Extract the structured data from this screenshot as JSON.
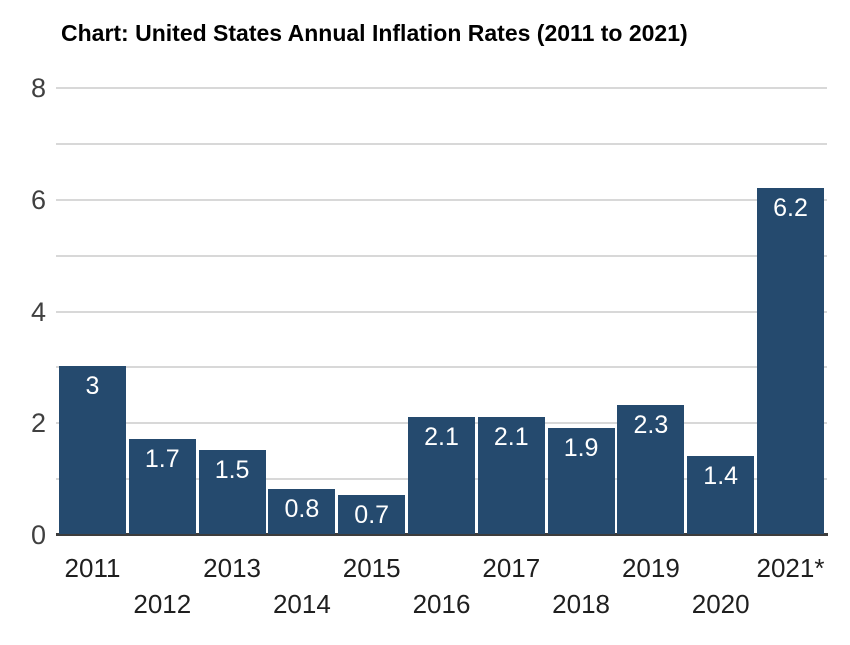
{
  "title": "Chart: United States Annual Inflation Rates (2011 to 2021)",
  "colors": {
    "background": "#ffffff",
    "bar": "#254a6e",
    "bar_label": "#ffffff",
    "grid": "#d8d8d8",
    "axis": "#3d3d3d",
    "y_tick_label": "#404040",
    "x_tick_label": "#1f1f1f",
    "title": "#000000"
  },
  "chart_data": {
    "type": "bar",
    "title": "Chart: United States Annual Inflation Rates (2011 to 2021)",
    "categories": [
      "2011",
      "2012",
      "2013",
      "2014",
      "2015",
      "2016",
      "2017",
      "2018",
      "2019",
      "2020",
      "2021*"
    ],
    "values": [
      3,
      1.7,
      1.5,
      0.8,
      0.7,
      2.1,
      2.1,
      1.9,
      2.3,
      1.4,
      6.2
    ],
    "bar_labels": [
      "3",
      "1.7",
      "1.5",
      "0.8",
      "0.7",
      "2.1",
      "2.1",
      "1.9",
      "2.3",
      "1.4",
      "6.2"
    ],
    "xlabel": "",
    "ylabel": "",
    "ylim": [
      0,
      8
    ],
    "yticks": [
      0,
      2,
      4,
      6,
      8
    ],
    "gridline_interval": 1,
    "grid": true,
    "legend": false,
    "value_labels_inside_bars": true,
    "x_labels_layout": "staggered-two-rows"
  }
}
